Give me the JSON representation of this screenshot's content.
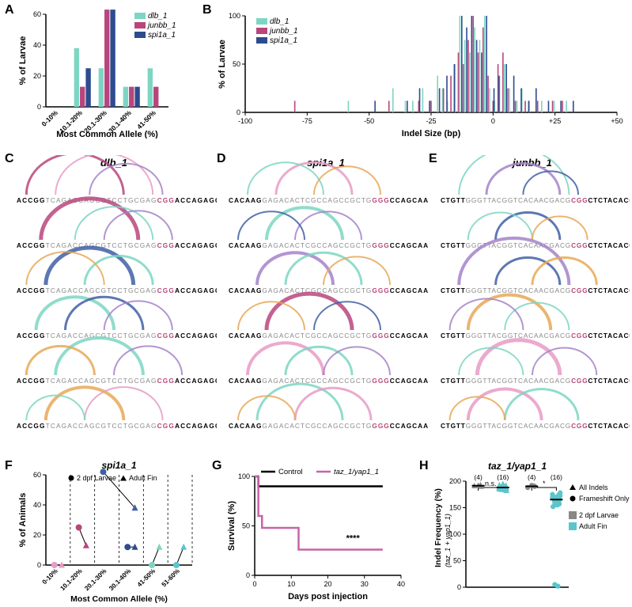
{
  "colors": {
    "dlb": "#7dd6c3",
    "junbb": "#b8467c",
    "spi1a": "#2e4b8f",
    "control": "#000000",
    "taz": "#c863a8",
    "arc1": "#b8467c",
    "arc2": "#e89bc5",
    "arc3": "#3f5fa5",
    "arc4": "#7dd6c3",
    "arc5": "#e8a857",
    "arc6": "#a583c9",
    "grey": "#888888",
    "cyan": "#5bc5cc"
  },
  "fonts": {
    "panel_label": 16,
    "axis_label": 11,
    "tick": 9,
    "legend": 10,
    "title_italic": 12
  },
  "panelA": {
    "label": "A",
    "ylabel": "% of Larvae",
    "xlabel": "Most Common Allele (%)",
    "ylim": [
      0,
      60
    ],
    "ytick_step": 20,
    "categories": [
      "0-10%",
      "10.1-20%",
      "20.1-30%",
      "30.1-40%",
      "41-50%"
    ],
    "series": [
      {
        "name": "dlb_1",
        "color": "#7dd6c3",
        "values": [
          0,
          38,
          25,
          13,
          25
        ]
      },
      {
        "name": "junbb_1",
        "color": "#b8467c",
        "values": [
          0,
          13,
          63,
          13,
          13
        ]
      },
      {
        "name": "spi1a_1",
        "color": "#2e4b8f",
        "values": [
          0,
          25,
          63,
          13,
          0
        ]
      }
    ],
    "legend_items": [
      "dlb_1",
      "junbb_1",
      "spi1a_1"
    ]
  },
  "panelB": {
    "label": "B",
    "ylabel": "% of Larvae",
    "xlabel": "Indel Size (bp)",
    "ylim": [
      0,
      100
    ],
    "ytick_step": 50,
    "xlim": [
      -100,
      50
    ],
    "xtick_step": 25,
    "legend_items": [
      "dlb_1",
      "junbb_1",
      "spi1a_1"
    ],
    "bars": {
      "dlb_1": [
        {
          "x": -58,
          "y": 12
        },
        {
          "x": -40,
          "y": 25
        },
        {
          "x": -35,
          "y": 12
        },
        {
          "x": -32,
          "y": 12
        },
        {
          "x": -28,
          "y": 25
        },
        {
          "x": -25,
          "y": 12
        },
        {
          "x": -22,
          "y": 38
        },
        {
          "x": -20,
          "y": 25
        },
        {
          "x": -18,
          "y": 12
        },
        {
          "x": -15,
          "y": 50
        },
        {
          "x": -13,
          "y": 100
        },
        {
          "x": -11,
          "y": 75
        },
        {
          "x": -9,
          "y": 62
        },
        {
          "x": -7,
          "y": 88
        },
        {
          "x": -5,
          "y": 75
        },
        {
          "x": -3,
          "y": 100
        },
        {
          "x": -1,
          "y": 25
        },
        {
          "x": 1,
          "y": 12
        },
        {
          "x": 3,
          "y": 38
        },
        {
          "x": 5,
          "y": 50
        },
        {
          "x": 7,
          "y": 25
        },
        {
          "x": 10,
          "y": 12
        },
        {
          "x": 12,
          "y": 25
        },
        {
          "x": 15,
          "y": 12
        },
        {
          "x": 20,
          "y": 12
        },
        {
          "x": 25,
          "y": 12
        },
        {
          "x": 30,
          "y": 12
        }
      ],
      "junbb_1": [
        {
          "x": -80,
          "y": 12
        },
        {
          "x": -42,
          "y": 12
        },
        {
          "x": -30,
          "y": 12
        },
        {
          "x": -25,
          "y": 12
        },
        {
          "x": -20,
          "y": 25
        },
        {
          "x": -17,
          "y": 38
        },
        {
          "x": -14,
          "y": 62
        },
        {
          "x": -12,
          "y": 50
        },
        {
          "x": -10,
          "y": 75
        },
        {
          "x": -8,
          "y": 100
        },
        {
          "x": -6,
          "y": 62
        },
        {
          "x": -4,
          "y": 88
        },
        {
          "x": -2,
          "y": 38
        },
        {
          "x": 0,
          "y": 12
        },
        {
          "x": 2,
          "y": 50
        },
        {
          "x": 4,
          "y": 62
        },
        {
          "x": 6,
          "y": 25
        },
        {
          "x": 9,
          "y": 12
        },
        {
          "x": 13,
          "y": 12
        },
        {
          "x": 18,
          "y": 12
        },
        {
          "x": 24,
          "y": 12
        },
        {
          "x": 28,
          "y": 12
        }
      ],
      "spi1a_1": [
        {
          "x": -48,
          "y": 12
        },
        {
          "x": -35,
          "y": 12
        },
        {
          "x": -30,
          "y": 25
        },
        {
          "x": -26,
          "y": 12
        },
        {
          "x": -22,
          "y": 25
        },
        {
          "x": -19,
          "y": 38
        },
        {
          "x": -16,
          "y": 50
        },
        {
          "x": -13,
          "y": 100
        },
        {
          "x": -11,
          "y": 88
        },
        {
          "x": -9,
          "y": 100
        },
        {
          "x": -7,
          "y": 75
        },
        {
          "x": -5,
          "y": 62
        },
        {
          "x": -3,
          "y": 100
        },
        {
          "x": 0,
          "y": 25
        },
        {
          "x": 2,
          "y": 38
        },
        {
          "x": 5,
          "y": 50
        },
        {
          "x": 8,
          "y": 38
        },
        {
          "x": 11,
          "y": 25
        },
        {
          "x": 14,
          "y": 12
        },
        {
          "x": 17,
          "y": 25
        },
        {
          "x": 22,
          "y": 12
        },
        {
          "x": 27,
          "y": 12
        },
        {
          "x": 32,
          "y": 12
        }
      ]
    }
  },
  "panelC": {
    "label": "C",
    "title": "dlb_1",
    "seq_black_left": "ACCGG",
    "seq_grey": "TCAGACCAGCGTCCTGCGAG",
    "seq_pam": "CGG",
    "seq_black_right": "ACCAGAGCTCCA",
    "rows": 6
  },
  "panelD": {
    "label": "D",
    "title": "spi1a_1",
    "seq_black_left": "CACAAG",
    "seq_grey": "GAGACACTCGCCAGCCGCTG",
    "seq_pam": "GGG",
    "seq_black_right": "CCAGCAAAAGGG",
    "rows": 6
  },
  "panelE": {
    "label": "E",
    "title": "junbb_1",
    "seq_black_left": "CTGTT",
    "seq_grey": "GGGTTACGGTCACAACGACG",
    "seq_pam": "CGG",
    "seq_black_right": "CTCTACACGACT",
    "rows": 6
  },
  "arc_palettes": {
    "C": [
      [
        {
          "s": 2,
          "e": 22,
          "c": "#b8467c",
          "w": 3
        },
        {
          "s": 8,
          "e": 28,
          "c": "#e89bc5",
          "w": 2
        },
        {
          "s": 15,
          "e": 30,
          "c": "#a583c9",
          "w": 2
        }
      ],
      [
        {
          "s": 5,
          "e": 25,
          "c": "#b8467c",
          "w": 5
        },
        {
          "s": 12,
          "e": 28,
          "c": "#7dd6c3",
          "w": 2
        },
        {
          "s": 18,
          "e": 32,
          "c": "#a583c9",
          "w": 2
        }
      ],
      [
        {
          "s": 6,
          "e": 24,
          "c": "#3f5fa5",
          "w": 5
        },
        {
          "s": 14,
          "e": 28,
          "c": "#7dd6c3",
          "w": 3
        },
        {
          "s": 2,
          "e": 18,
          "c": "#e8a857",
          "w": 2
        }
      ],
      [
        {
          "s": 4,
          "e": 20,
          "c": "#7dd6c3",
          "w": 4
        },
        {
          "s": 10,
          "e": 26,
          "c": "#3f5fa5",
          "w": 3
        },
        {
          "s": 18,
          "e": 32,
          "c": "#a583c9",
          "w": 2
        }
      ],
      [
        {
          "s": 8,
          "e": 26,
          "c": "#7dd6c3",
          "w": 4
        },
        {
          "s": 2,
          "e": 16,
          "c": "#e8a857",
          "w": 3
        },
        {
          "s": 20,
          "e": 34,
          "c": "#a583c9",
          "w": 2
        }
      ],
      [
        {
          "s": 6,
          "e": 22,
          "c": "#e8a857",
          "w": 4
        },
        {
          "s": 14,
          "e": 30,
          "c": "#e89bc5",
          "w": 2
        },
        {
          "s": 2,
          "e": 14,
          "c": "#7dd6c3",
          "w": 2
        }
      ]
    ],
    "D": [
      [
        {
          "s": 10,
          "e": 26,
          "c": "#e89bc5",
          "w": 3
        },
        {
          "s": 4,
          "e": 20,
          "c": "#7dd6c3",
          "w": 2
        },
        {
          "s": 18,
          "e": 32,
          "c": "#e8a857",
          "w": 2
        }
      ],
      [
        {
          "s": 8,
          "e": 24,
          "c": "#7dd6c3",
          "w": 4
        },
        {
          "s": 14,
          "e": 28,
          "c": "#a583c9",
          "w": 2
        },
        {
          "s": 2,
          "e": 16,
          "c": "#3f5fa5",
          "w": 2
        }
      ],
      [
        {
          "s": 6,
          "e": 22,
          "c": "#a583c9",
          "w": 4
        },
        {
          "s": 12,
          "e": 28,
          "c": "#7dd6c3",
          "w": 3
        },
        {
          "s": 20,
          "e": 34,
          "c": "#e8a857",
          "w": 2
        }
      ],
      [
        {
          "s": 8,
          "e": 26,
          "c": "#b8467c",
          "w": 5
        },
        {
          "s": 2,
          "e": 16,
          "c": "#e8a857",
          "w": 2
        },
        {
          "s": 18,
          "e": 32,
          "c": "#3f5fa5",
          "w": 2
        }
      ],
      [
        {
          "s": 4,
          "e": 20,
          "c": "#e89bc5",
          "w": 4
        },
        {
          "s": 12,
          "e": 26,
          "c": "#7dd6c3",
          "w": 3
        },
        {
          "s": 20,
          "e": 34,
          "c": "#a583c9",
          "w": 2
        }
      ],
      [
        {
          "s": 6,
          "e": 24,
          "c": "#7dd6c3",
          "w": 3
        },
        {
          "s": 14,
          "e": 30,
          "c": "#e89bc5",
          "w": 3
        },
        {
          "s": 2,
          "e": 14,
          "c": "#e8a857",
          "w": 2
        }
      ]
    ],
    "E": [
      [
        {
          "s": 4,
          "e": 28,
          "c": "#7dd6c3",
          "w": 2
        },
        {
          "s": 10,
          "e": 26,
          "c": "#a583c9",
          "w": 3
        },
        {
          "s": 18,
          "e": 30,
          "c": "#3f5fa5",
          "w": 2
        }
      ],
      [
        {
          "s": 12,
          "e": 26,
          "c": "#3f5fa5",
          "w": 3
        },
        {
          "s": 6,
          "e": 20,
          "c": "#7dd6c3",
          "w": 2
        },
        {
          "s": 20,
          "e": 32,
          "c": "#e8a857",
          "w": 2
        }
      ],
      [
        {
          "s": 4,
          "e": 28,
          "c": "#a583c9",
          "w": 4
        },
        {
          "s": 12,
          "e": 26,
          "c": "#3f5fa5",
          "w": 3
        },
        {
          "s": 20,
          "e": 34,
          "c": "#e8a857",
          "w": 3
        }
      ],
      [
        {
          "s": 6,
          "e": 24,
          "c": "#e8a857",
          "w": 4
        },
        {
          "s": 14,
          "e": 28,
          "c": "#7dd6c3",
          "w": 2
        },
        {
          "s": 2,
          "e": 18,
          "c": "#a583c9",
          "w": 2
        }
      ],
      [
        {
          "s": 8,
          "e": 26,
          "c": "#e89bc5",
          "w": 5
        },
        {
          "s": 4,
          "e": 18,
          "c": "#7dd6c3",
          "w": 2
        },
        {
          "s": 20,
          "e": 34,
          "c": "#a583c9",
          "w": 2
        }
      ],
      [
        {
          "s": 6,
          "e": 22,
          "c": "#e89bc5",
          "w": 4
        },
        {
          "s": 14,
          "e": 30,
          "c": "#7dd6c3",
          "w": 3
        },
        {
          "s": 2,
          "e": 14,
          "c": "#e8a857",
          "w": 2
        }
      ]
    ]
  },
  "panelF": {
    "label": "F",
    "title": "spi1a_1",
    "ylabel": "% of Animals",
    "xlabel": "Most Common Allele (%)",
    "categories": [
      "0-10%",
      "10.1-20%",
      "20.1-30%",
      "30.1-40%",
      "41-50%",
      "51-60%"
    ],
    "ylim": [
      0,
      60
    ],
    "ytick_step": 20,
    "legend": [
      {
        "label": "2 dpf Larvae",
        "marker": "circle"
      },
      {
        "label": "Adult Fin",
        "marker": "triangle"
      }
    ],
    "pairs": [
      {
        "color": "#e89bc5",
        "larva": {
          "cat": 0,
          "y": 0
        },
        "adult": {
          "cat": 0,
          "y": 0
        }
      },
      {
        "color": "#b8467c",
        "larva": {
          "cat": 1,
          "y": 25
        },
        "adult": {
          "cat": 1,
          "y": 13
        }
      },
      {
        "color": "#3f5fa5",
        "larva": {
          "cat": 2,
          "y": 62
        },
        "adult": {
          "cat": 3,
          "y": 38
        }
      },
      {
        "color": "#2e4b8f",
        "larva": {
          "cat": 3,
          "y": 12
        },
        "adult": {
          "cat": 3,
          "y": 12
        }
      },
      {
        "color": "#7dd6c3",
        "larva": {
          "cat": 4,
          "y": 0
        },
        "adult": {
          "cat": 4,
          "y": 12
        }
      },
      {
        "color": "#5bc5cc",
        "larva": {
          "cat": 5,
          "y": 0
        },
        "adult": {
          "cat": 5,
          "y": 12
        }
      }
    ]
  },
  "panelG": {
    "label": "G",
    "ylabel": "Survival (%)",
    "xlabel": "Days post injection",
    "ylim": [
      0,
      100
    ],
    "ytick_step": 50,
    "xlim": [
      0,
      40
    ],
    "xtick_step": 10,
    "legend": [
      {
        "label": "Control",
        "color": "#000000"
      },
      {
        "label": "taz_1/yap1_1",
        "color": "#c863a8"
      }
    ],
    "control_line": [
      {
        "x": 0,
        "y": 100
      },
      {
        "x": 1,
        "y": 90
      },
      {
        "x": 35,
        "y": 90
      }
    ],
    "taz_line": [
      {
        "x": 0,
        "y": 100
      },
      {
        "x": 1,
        "y": 60
      },
      {
        "x": 2,
        "y": 48
      },
      {
        "x": 3,
        "y": 48
      },
      {
        "x": 4,
        "y": 48
      },
      {
        "x": 6,
        "y": 48
      },
      {
        "x": 12,
        "y": 26
      },
      {
        "x": 35,
        "y": 26
      }
    ],
    "sig": "****"
  },
  "panelH": {
    "label": "H",
    "title": "taz_1/yap1_1",
    "ylabel": "Indel Frequency (%)",
    "ysub": "(taz_1 + yap1_1)",
    "ylim": [
      0,
      200
    ],
    "ytick_step": 50,
    "groups": [
      "All Indels",
      "Frameshift Only"
    ],
    "conds": [
      "2 dpf Larvae",
      "Adult Fin"
    ],
    "n": [
      "(4)",
      "(16)",
      "(4)",
      "(16)"
    ],
    "sig": [
      "n.s.",
      "*"
    ],
    "legend_shapes": [
      {
        "label": "All Indels",
        "marker": "triangle"
      },
      {
        "label": "Frameshift Only",
        "marker": "circle"
      }
    ],
    "legend_colors": [
      {
        "label": "2 dpf Larvae",
        "color": "#888888"
      },
      {
        "label": "Adult Fin",
        "color": "#5bc5cc"
      }
    ],
    "points": {
      "all_2dpf": [
        192,
        190,
        191,
        193
      ],
      "all_adult": [
        195,
        192,
        188,
        185,
        190,
        193,
        187,
        184,
        186,
        182,
        191,
        189,
        183,
        185,
        188,
        190
      ],
      "fs_2dpf": [
        192,
        190,
        188,
        191
      ],
      "fs_adult": [
        170,
        165,
        175,
        160,
        155,
        168,
        172,
        158,
        162,
        178,
        152,
        166,
        174,
        169,
        157,
        163
      ]
    },
    "outliers_adult_fs": [
      5,
      2
    ]
  }
}
